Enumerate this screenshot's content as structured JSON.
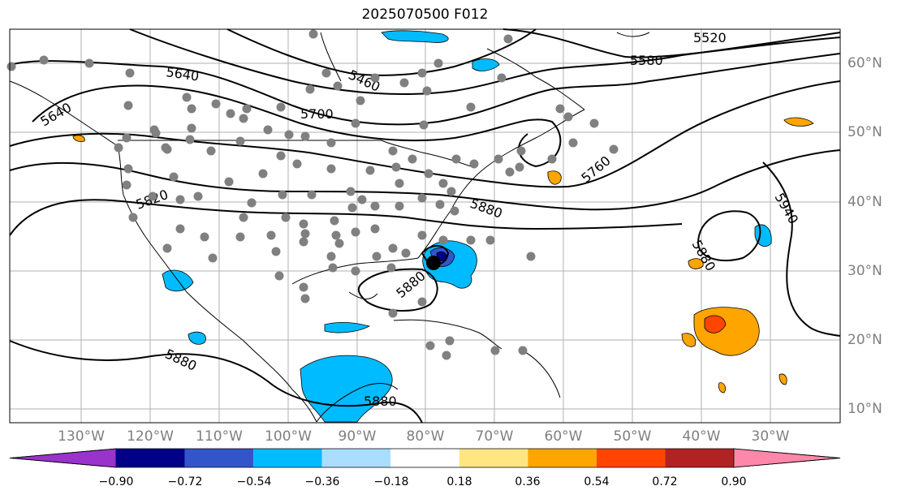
{
  "title": "2025070500 F012",
  "map": {
    "lat_labels": [
      "60°N",
      "50°N",
      "40°N",
      "30°N",
      "20°N",
      "10°N"
    ],
    "lon_labels": [
      "130°W",
      "120°W",
      "110°W",
      "100°W",
      "90°W",
      "80°W",
      "70°W",
      "60°W",
      "50°W",
      "40°W",
      "30°W"
    ],
    "contour_labels": [
      "5520",
      "5580",
      "5460",
      "5640",
      "5640",
      "5700",
      "5760",
      "5820",
      "5880",
      "5880",
      "5880",
      "5880",
      "5880",
      "5940"
    ],
    "colors": {
      "contour": "#000000",
      "station": "#808080",
      "grid": "#b0b0b0",
      "coast": "#000000",
      "center_marker": "#000000"
    }
  },
  "colorbar": {
    "tick_labels": [
      "−0.90",
      "−0.72",
      "−0.54",
      "−0.36",
      "−0.18",
      "0.18",
      "0.36",
      "0.54",
      "0.72",
      "0.90"
    ],
    "colors": [
      "#9933cc",
      "#000088",
      "#3355cc",
      "#00bbff",
      "#aaddff",
      "#ffffff",
      "#ffe680",
      "#ffa500",
      "#ff4500",
      "#b22222",
      "#ff88aa"
    ]
  }
}
